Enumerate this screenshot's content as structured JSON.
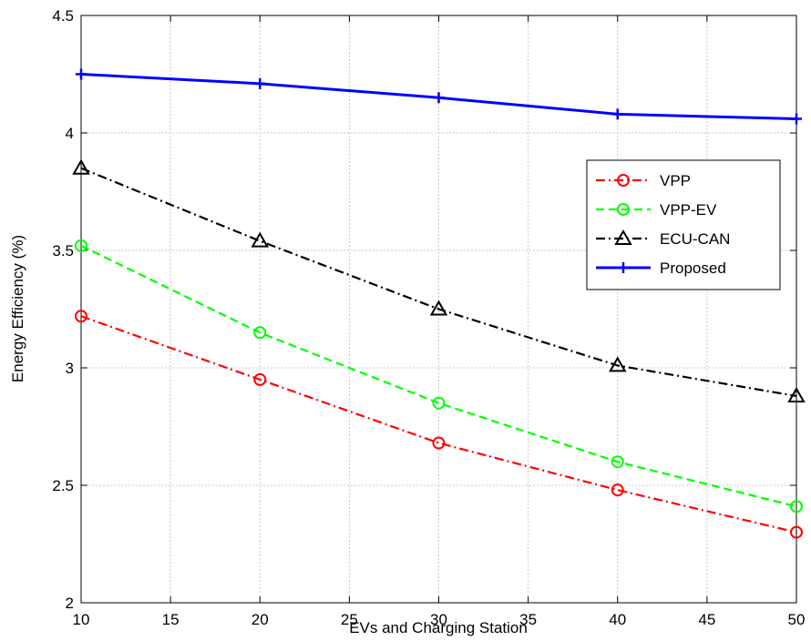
{
  "chart_data": {
    "type": "line",
    "title": "",
    "xlabel": "EVs and Charging Station",
    "ylabel": "Energy Efficiency (%)",
    "x": [
      10,
      20,
      30,
      40,
      50
    ],
    "xlim": [
      10,
      50
    ],
    "ylim": [
      2,
      4.5
    ],
    "xticks": [
      10,
      15,
      20,
      25,
      30,
      35,
      40,
      45,
      50
    ],
    "yticks": [
      2,
      2.5,
      3,
      3.5,
      4,
      4.5
    ],
    "grid": true,
    "legend_position": "right",
    "series": [
      {
        "name": "VPP",
        "values": [
          3.22,
          2.95,
          2.68,
          2.48,
          2.3
        ],
        "color": "#ff0000",
        "dash": "dash-dot",
        "marker": "circle"
      },
      {
        "name": "VPP-EV",
        "values": [
          3.52,
          3.15,
          2.85,
          2.6,
          2.41
        ],
        "color": "#00ff00",
        "dash": "dashed",
        "marker": "circle"
      },
      {
        "name": "ECU-CAN",
        "values": [
          3.85,
          3.54,
          3.25,
          3.01,
          2.88
        ],
        "color": "#000000",
        "dash": "dash-dot",
        "marker": "triangle"
      },
      {
        "name": "Proposed",
        "values": [
          4.25,
          4.21,
          4.15,
          4.08,
          4.06
        ],
        "color": "#0000ff",
        "dash": "solid",
        "marker": "plus"
      }
    ]
  }
}
